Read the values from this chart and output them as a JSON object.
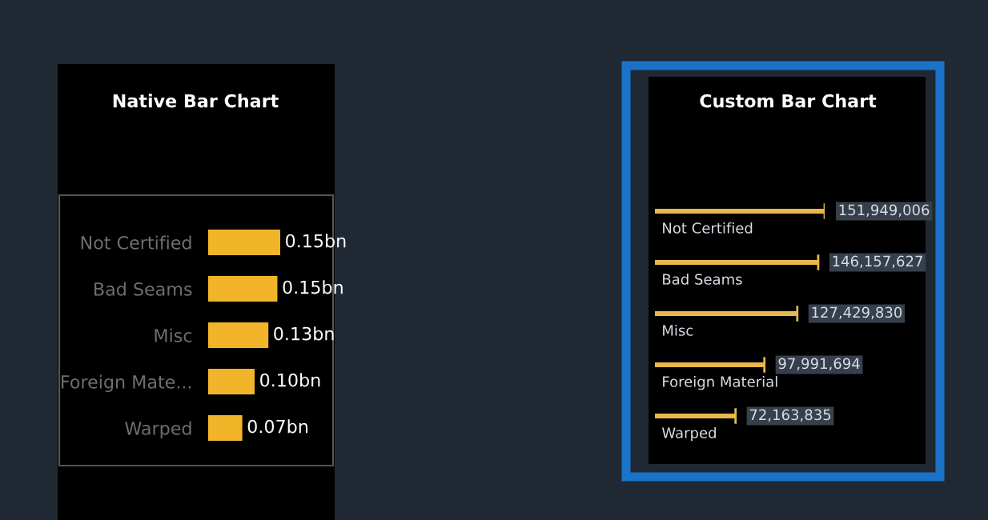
{
  "chart_data": [
    {
      "type": "bar",
      "title": "Native Bar Chart",
      "orientation": "horizontal",
      "categories": [
        "Not Certified",
        "Bad Seams",
        "Misc",
        "Foreign Mate...",
        "Warped"
      ],
      "color": "#f2b52a",
      "values": [
        0.152,
        0.146,
        0.127,
        0.098,
        0.072
      ],
      "value_labels": [
        "0.15bn",
        "0.15bn",
        "0.13bn",
        "0.10bn",
        "0.07bn"
      ]
    },
    {
      "type": "bar",
      "title": "Custom Bar Chart",
      "orientation": "horizontal",
      "categories": [
        "Not Certified",
        "Bad Seams",
        "Misc",
        "Foreign Material",
        "Warped"
      ],
      "color": "#e8b84a",
      "values": [
        151949006,
        146157627,
        127429830,
        97991694,
        72163835
      ],
      "value_labels": [
        "151,949,006",
        "146,157,627",
        "127,429,830",
        "97,991,694",
        "72,163,835"
      ]
    }
  ]
}
